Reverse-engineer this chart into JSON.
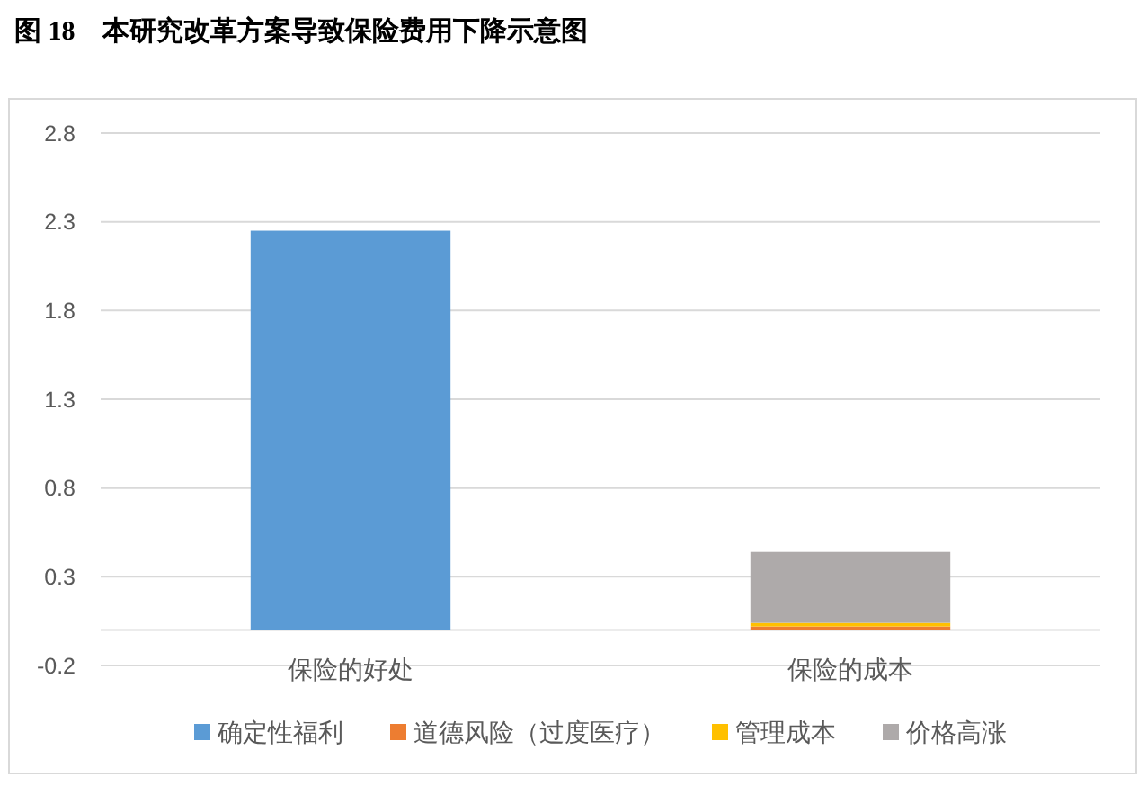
{
  "chart_data": {
    "type": "bar",
    "title": "图 18　本研究改革方案导致保险费用下降示意图",
    "categories": [
      "保险的好处",
      "保险的成本"
    ],
    "series": [
      {
        "name": "确定性福利",
        "color": "#5b9bd5",
        "values": [
          2.25,
          null
        ]
      },
      {
        "name": "道德风险（过度医疗）",
        "color": "#ed7d31",
        "values": [
          null,
          0.02
        ]
      },
      {
        "name": "管理成本",
        "color": "#ffc000",
        "values": [
          null,
          0.02
        ]
      },
      {
        "name": "价格高涨",
        "color": "#aeaaaa",
        "values": [
          null,
          0.4
        ]
      }
    ],
    "stacked": true,
    "ylim": [
      -0.2,
      2.8
    ],
    "yticks": [
      -0.2,
      0.3,
      0.8,
      1.3,
      1.8,
      2.3,
      2.8
    ],
    "grid": "y",
    "legend": "bottom"
  }
}
